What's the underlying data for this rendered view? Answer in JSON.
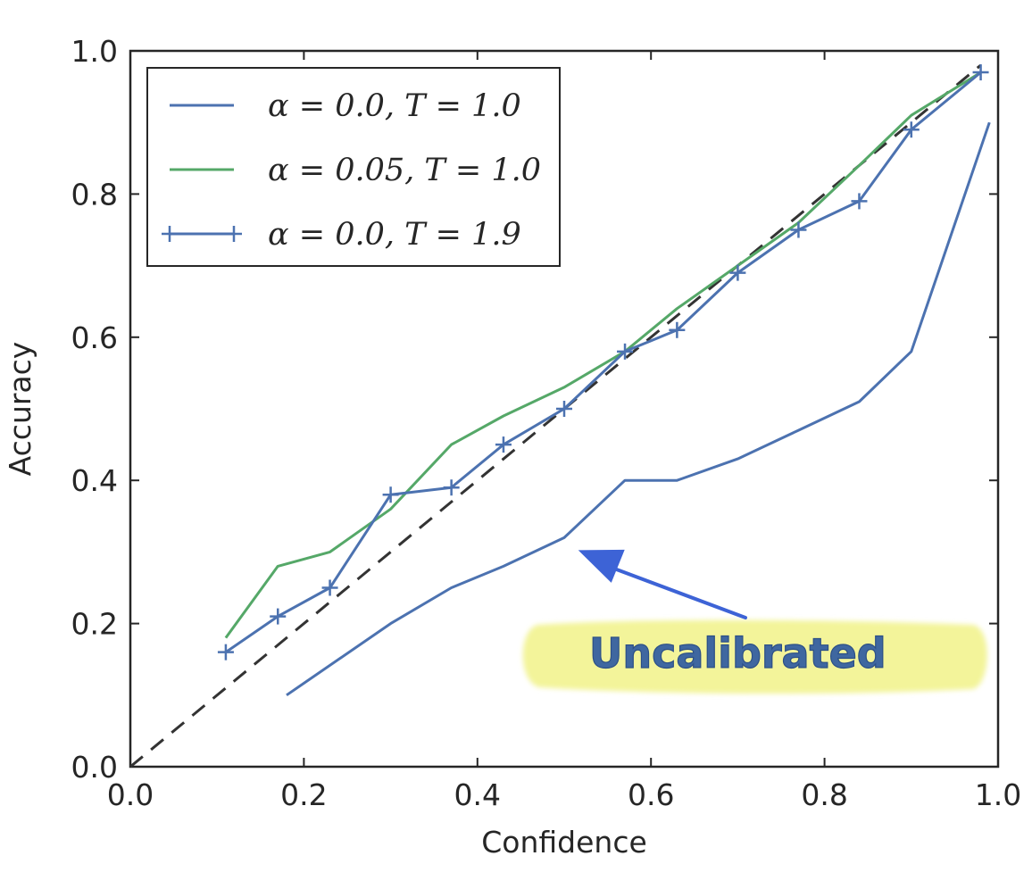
{
  "chart_data": {
    "type": "line",
    "title": "",
    "xlabel": "Confidence",
    "ylabel": "Accuracy",
    "xlim": [
      0.0,
      1.0
    ],
    "ylim": [
      0.0,
      1.0
    ],
    "xticks": [
      "0.0",
      "0.2",
      "0.4",
      "0.6",
      "0.8",
      "1.0"
    ],
    "yticks": [
      "0.0",
      "0.2",
      "0.4",
      "0.6",
      "0.8",
      "1.0"
    ],
    "grid": false,
    "legend_position": "top-left",
    "reference_line": {
      "style": "dashed",
      "color": "#333333",
      "x": [
        0.0,
        0.98
      ],
      "y": [
        0.0,
        0.98
      ]
    },
    "series": [
      {
        "name": "α = 0.0, T = 1.0",
        "color": "#4c72b0",
        "marker": "none",
        "x": [
          0.18,
          0.3,
          0.37,
          0.43,
          0.5,
          0.57,
          0.63,
          0.7,
          0.77,
          0.84,
          0.9,
          0.99
        ],
        "y": [
          0.1,
          0.2,
          0.25,
          0.28,
          0.32,
          0.4,
          0.4,
          0.43,
          0.47,
          0.51,
          0.58,
          0.9
        ]
      },
      {
        "name": "α = 0.05, T = 1.0",
        "color": "#55a868",
        "marker": "none",
        "x": [
          0.11,
          0.17,
          0.23,
          0.3,
          0.37,
          0.43,
          0.5,
          0.57,
          0.63,
          0.7,
          0.77,
          0.84,
          0.9,
          0.98
        ],
        "y": [
          0.18,
          0.28,
          0.3,
          0.36,
          0.45,
          0.49,
          0.53,
          0.58,
          0.64,
          0.7,
          0.76,
          0.84,
          0.91,
          0.97
        ]
      },
      {
        "name": "α = 0.0, T = 1.9",
        "color": "#4c72b0",
        "marker": "plus",
        "x": [
          0.11,
          0.17,
          0.23,
          0.3,
          0.37,
          0.43,
          0.5,
          0.57,
          0.63,
          0.7,
          0.77,
          0.84,
          0.9,
          0.98
        ],
        "y": [
          0.16,
          0.21,
          0.25,
          0.38,
          0.39,
          0.45,
          0.5,
          0.58,
          0.61,
          0.69,
          0.75,
          0.79,
          0.89,
          0.97
        ]
      }
    ],
    "annotations": [
      {
        "text": "Uncalibrated",
        "target": {
          "x": 0.51,
          "y": 0.3
        },
        "arrow_color": "#3d63d6",
        "highlight_color": "#f3f49a"
      }
    ]
  }
}
